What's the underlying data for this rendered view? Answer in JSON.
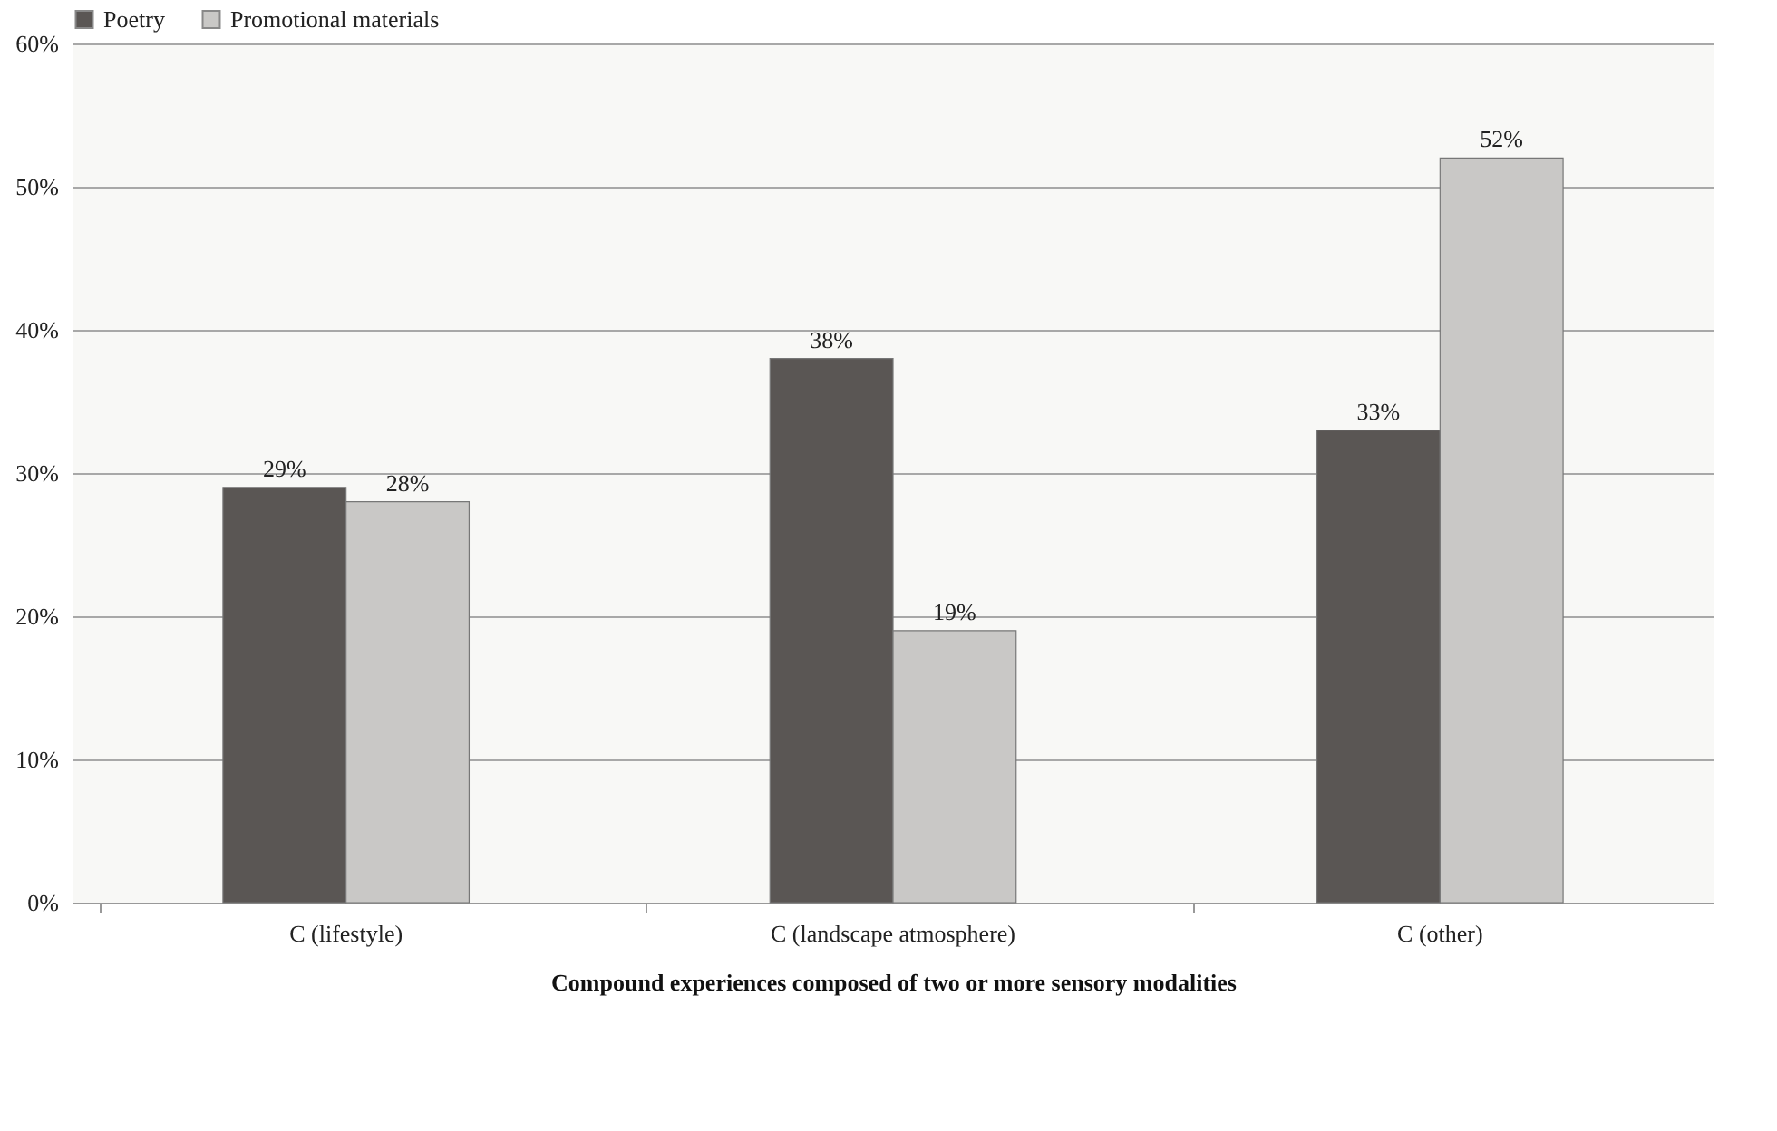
{
  "chart_data": {
    "type": "bar",
    "xlabel": "Compound experiences composed of two or more sensory modalities",
    "categories": [
      "C (lifestyle)",
      "C (landscape atmosphere)",
      "C (other)"
    ],
    "series": [
      {
        "name": "Poetry",
        "color": "#5a5654",
        "values": [
          29,
          38,
          33
        ],
        "value_labels": [
          "29%",
          "38%",
          "33%"
        ]
      },
      {
        "name": "Promotional materials",
        "color": "#c9c8c6",
        "values": [
          28,
          19,
          52
        ],
        "value_labels": [
          "28%",
          "19%",
          "52%"
        ]
      }
    ],
    "ylim": [
      0,
      60
    ],
    "yticks": [
      {
        "value": 0,
        "label": "0%"
      },
      {
        "value": 10,
        "label": "10%"
      },
      {
        "value": 20,
        "label": "20%"
      },
      {
        "value": 30,
        "label": "30%"
      },
      {
        "value": 40,
        "label": "40%"
      },
      {
        "value": 50,
        "label": "50%"
      },
      {
        "value": 60,
        "label": "60%"
      }
    ],
    "grid": "y",
    "legend": "top"
  }
}
